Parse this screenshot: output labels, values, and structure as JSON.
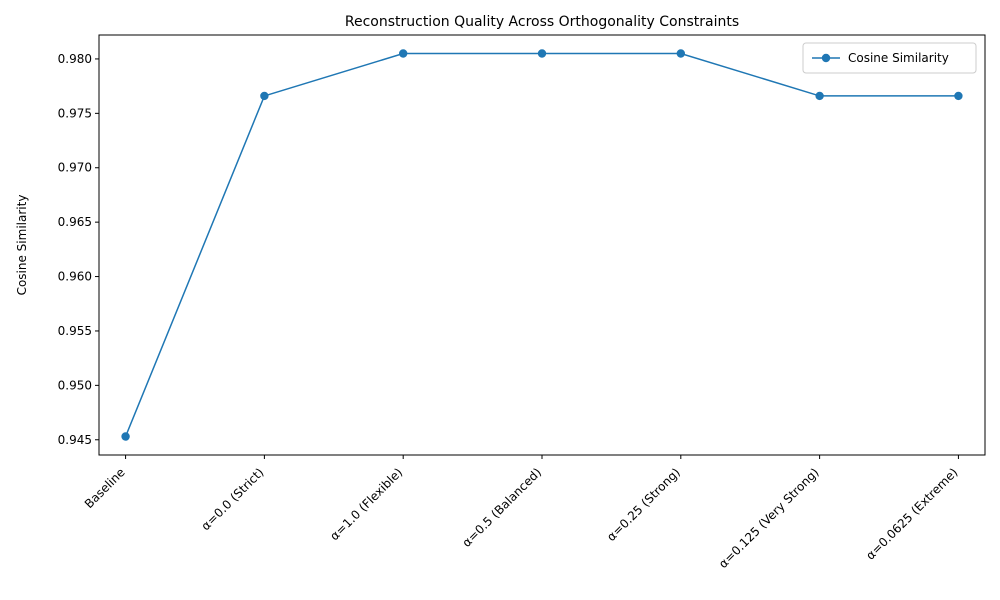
{
  "chart_data": {
    "type": "line",
    "title": "Reconstruction Quality Across Orthogonality Constraints",
    "xlabel": "",
    "ylabel": "Cosine Similarity",
    "categories": [
      "Baseline",
      "α=0.0 (Strict)",
      "α=1.0 (Flexible)",
      "α=0.5 (Balanced)",
      "α=0.25 (Strong)",
      "α=0.125 (Very Strong)",
      "α=0.0625 (Extreme)"
    ],
    "series": [
      {
        "name": "Cosine Similarity",
        "color": "#1f77b4",
        "marker": "circle",
        "values": [
          0.9453,
          0.9766,
          0.9805,
          0.9805,
          0.9805,
          0.9766,
          0.9766
        ]
      }
    ],
    "ylim": [
      0.9436,
      0.9822
    ],
    "yticks": [
      0.945,
      0.95,
      0.955,
      0.96,
      0.965,
      0.97,
      0.975,
      0.98
    ],
    "ytick_labels": [
      "0.945",
      "0.950",
      "0.955",
      "0.960",
      "0.965",
      "0.970",
      "0.975",
      "0.980"
    ],
    "grid": false,
    "legend": "top-right"
  }
}
